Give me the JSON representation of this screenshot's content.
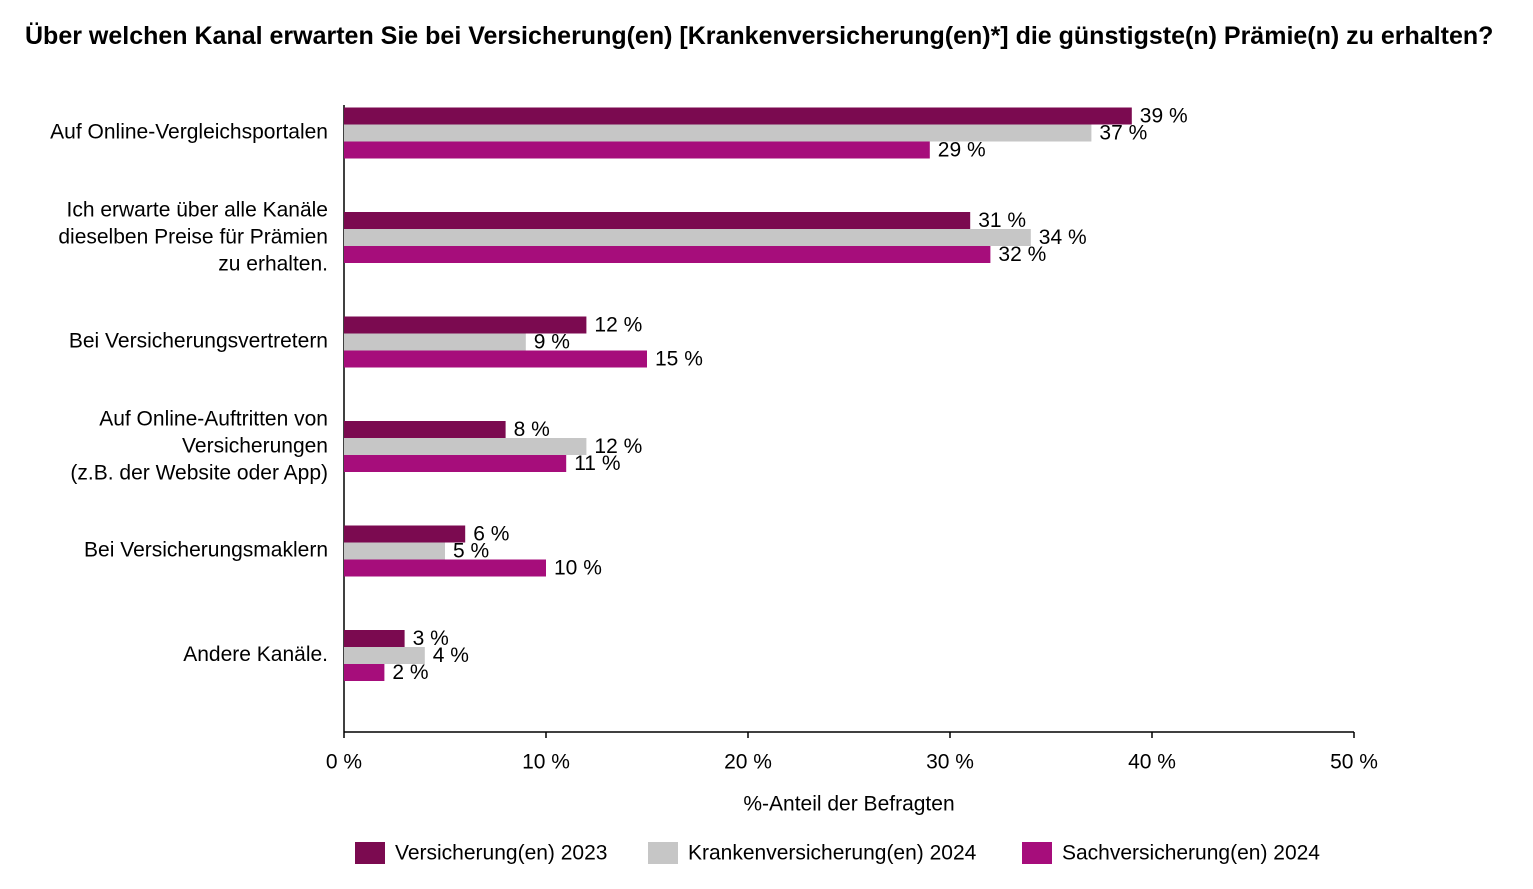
{
  "chart_data": {
    "type": "bar",
    "orientation": "horizontal",
    "title": "Über welchen Kanal erwarten Sie bei Versicherung(en) [Krankenversicherung(en)*] die günstigste(n) Prämie(n) zu erhalten?",
    "categories": [
      "Auf Online-Vergleichsportalen",
      "Ich erwarte über alle Kanäle\ndieselben Preise für Prämien\nzu erhalten.",
      "Bei Versicherungsvertretern",
      "Auf Online-Auftritten von\nVersicherungen\n(z.B. der Website oder App)",
      "Bei Versicherungsmaklern",
      "Andere Kanäle."
    ],
    "series": [
      {
        "name": "Versicherung(en) 2023",
        "color": "#7b0a50",
        "values": [
          39,
          31,
          12,
          8,
          6,
          3
        ],
        "value_labels": [
          "39 %",
          "31 %",
          "12 %",
          "8 %",
          "6 %",
          "3 %"
        ]
      },
      {
        "name": "Krankenversicherung(en) 2024",
        "color": "#c6c6c6",
        "values": [
          37,
          34,
          9,
          12,
          5,
          4
        ],
        "value_labels": [
          "37 %",
          "34 %",
          "9 %",
          "12 %",
          "5 %",
          "4 %"
        ]
      },
      {
        "name": "Sachversicherung(en) 2024",
        "color": "#a60d7b",
        "values": [
          29,
          32,
          15,
          11,
          10,
          2
        ],
        "value_labels": [
          "29 %",
          "32 %",
          "15 %",
          "11 %",
          "10 %",
          "2 %"
        ]
      }
    ],
    "xlabel": "%-Anteil der Befragten",
    "xlim": [
      0,
      50
    ],
    "xticks": [
      {
        "value": 0,
        "label": "0 %"
      },
      {
        "value": 10,
        "label": "10 %"
      },
      {
        "value": 20,
        "label": "20 %"
      },
      {
        "value": 30,
        "label": "30 %"
      },
      {
        "value": 40,
        "label": "40 %"
      },
      {
        "value": 50,
        "label": "50 %"
      }
    ],
    "legend": "bottom"
  }
}
